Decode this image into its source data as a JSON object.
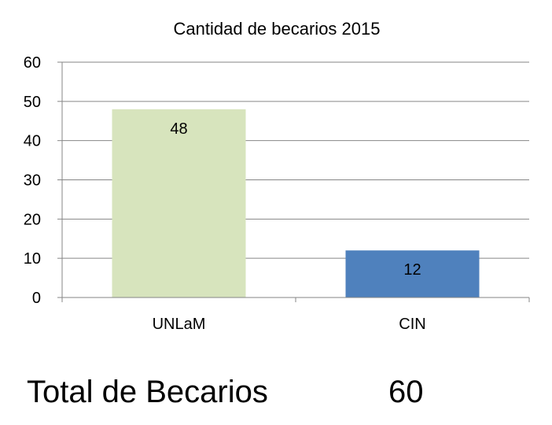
{
  "chart_data": {
    "type": "bar",
    "title": "Cantidad de becarios 2015",
    "categories": [
      "UNLaM",
      "CIN"
    ],
    "values": [
      48,
      12
    ],
    "data_labels": [
      "48",
      "12"
    ],
    "bar_colors": [
      "#d7e4bd",
      "#4f81bd"
    ],
    "ylim": [
      0,
      60
    ],
    "yticks": [
      0,
      10,
      20,
      30,
      40,
      50,
      60
    ],
    "ytick_labels": [
      "0",
      "10",
      "20",
      "30",
      "40",
      "50",
      "60"
    ],
    "grid": true,
    "legend": "none",
    "xlabel": "",
    "ylabel": ""
  },
  "summary": {
    "label": "Total de Becarios",
    "value": "60"
  }
}
